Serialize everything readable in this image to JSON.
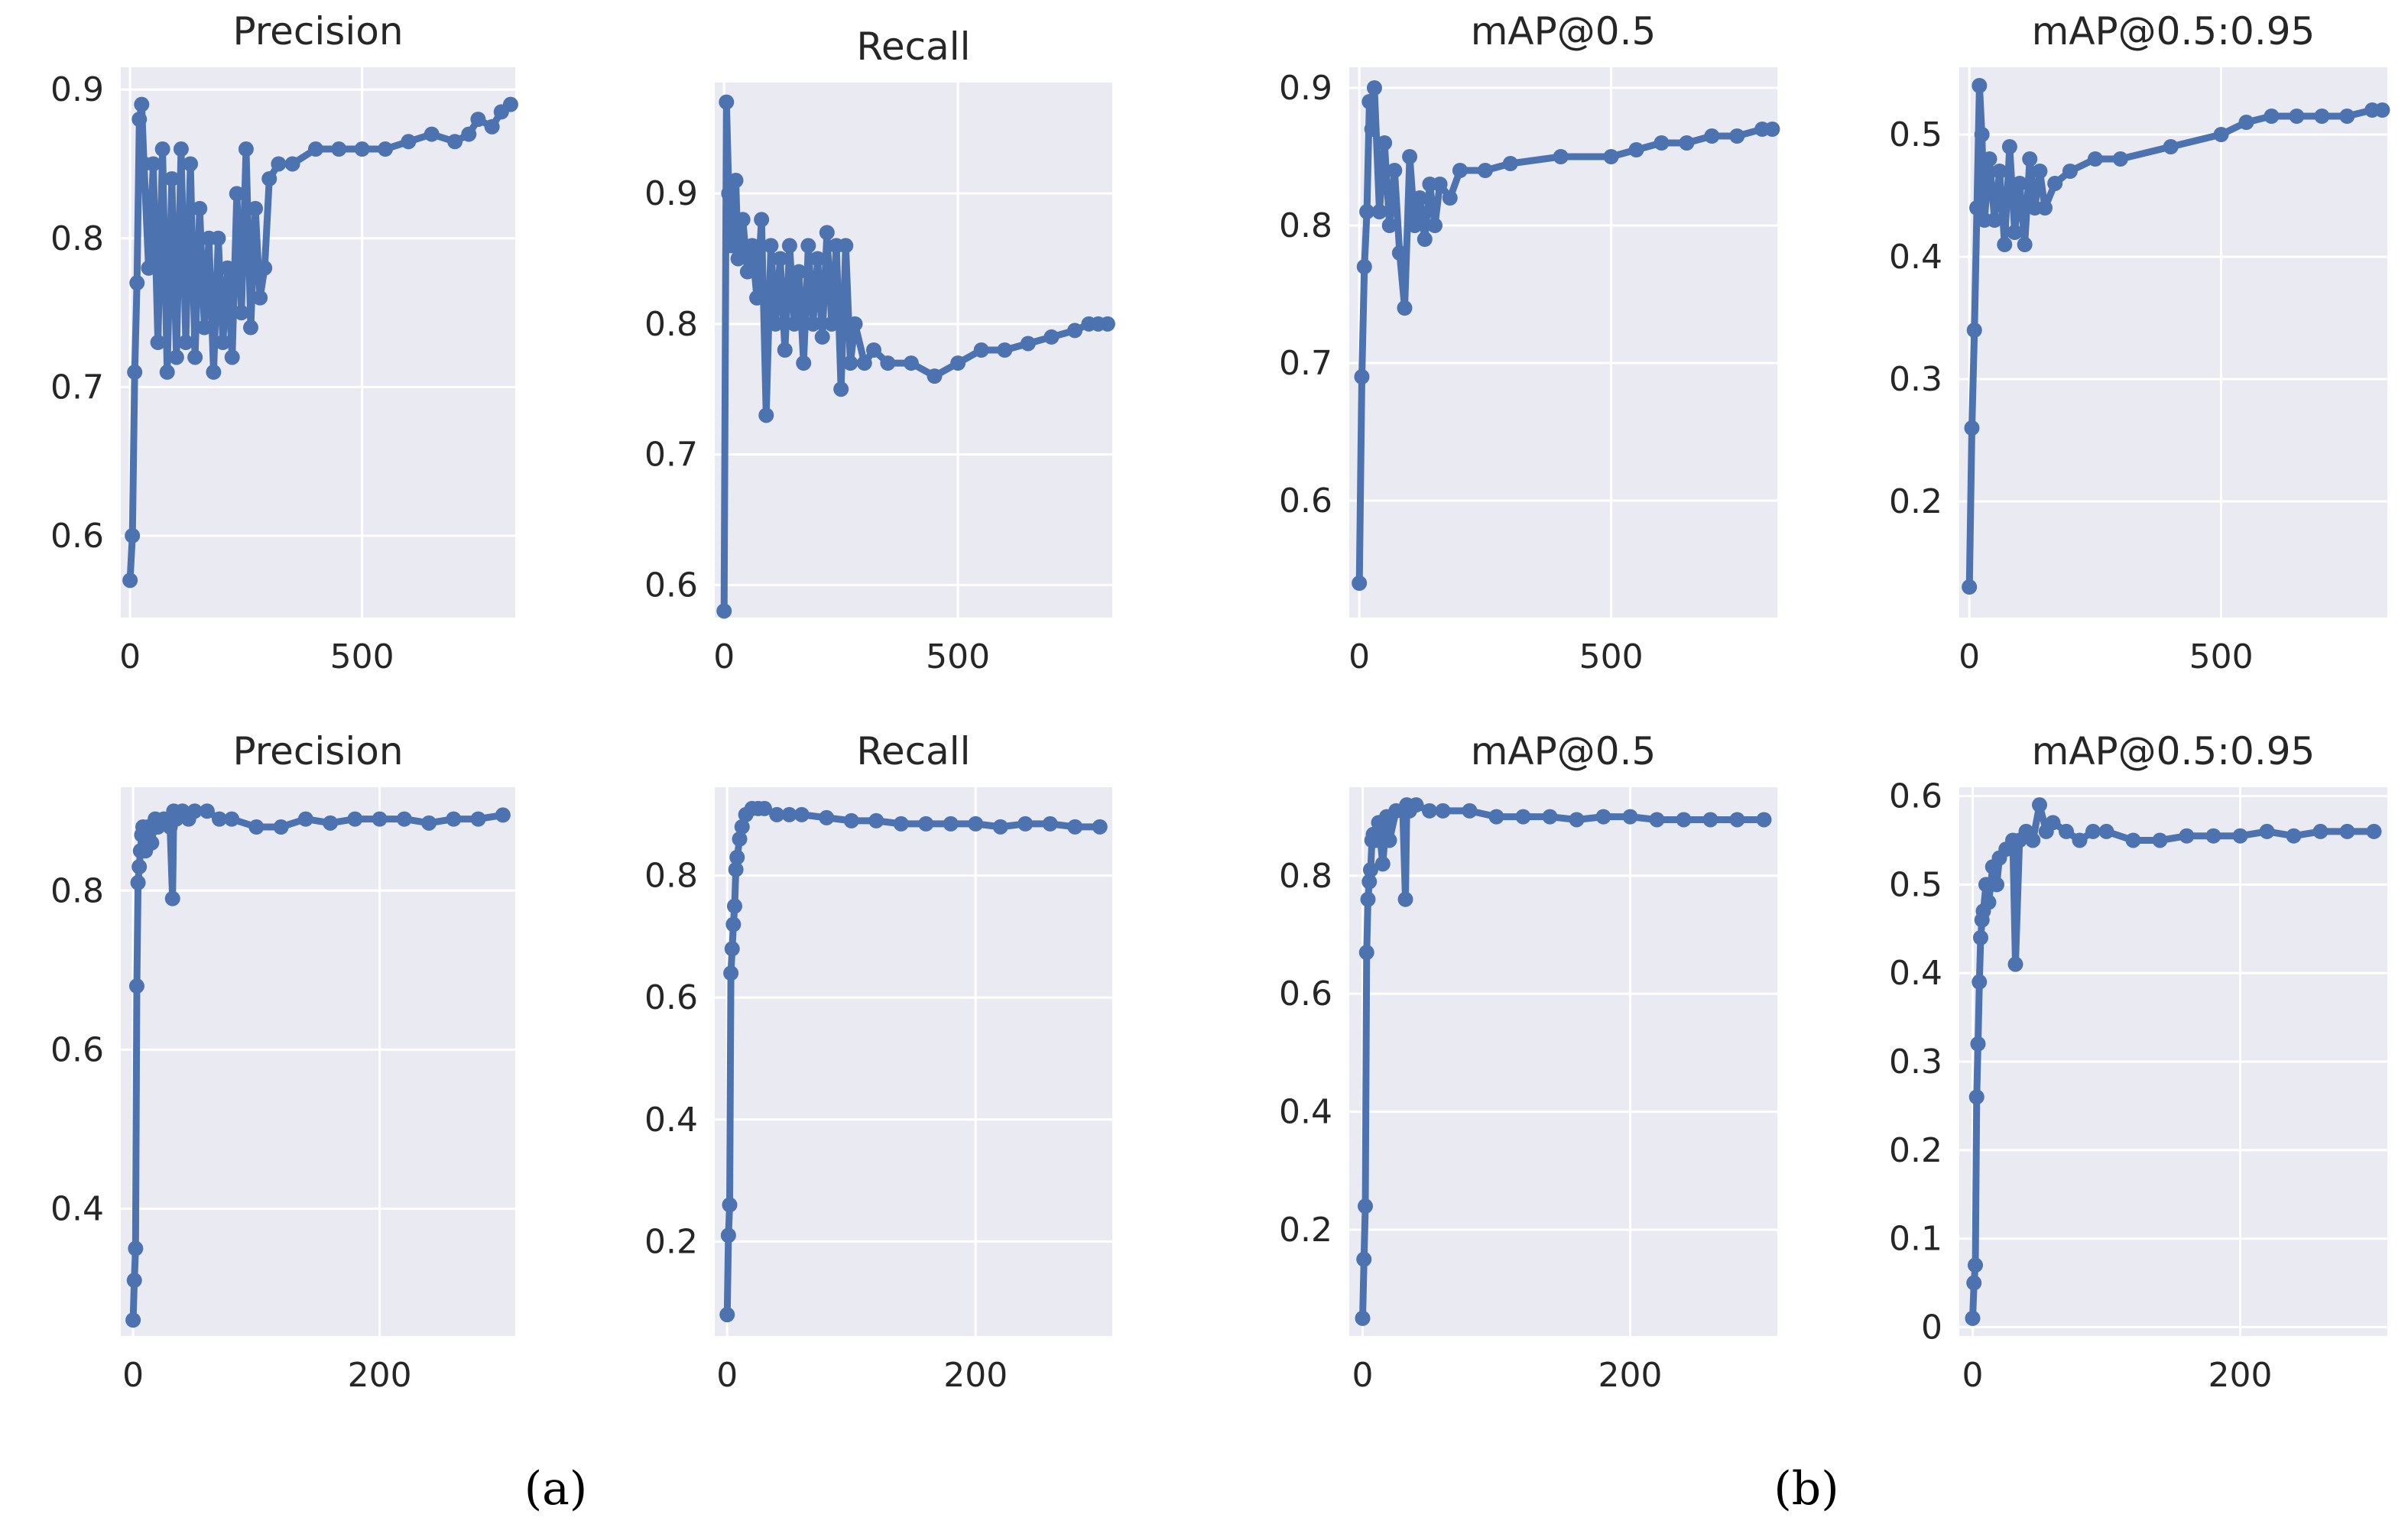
{
  "colors": {
    "panel_bg": "#EAEAF2",
    "grid": "#FFFFFF",
    "series": "#4C72B0",
    "text": "#262626"
  },
  "figure_labels": {
    "a": "(a)",
    "b": "(b)"
  },
  "chart_data": [
    {
      "type": "line",
      "group": "a",
      "title": "Precision",
      "xlim": [
        -20,
        830
      ],
      "ylim": [
        0.545,
        0.915
      ],
      "xticks": [
        0,
        500
      ],
      "yticks": [
        0.6,
        0.7,
        0.8,
        0.9
      ],
      "series": [
        {
          "name": "Precision",
          "x": [
            0,
            5,
            10,
            15,
            20,
            25,
            30,
            40,
            50,
            60,
            70,
            80,
            90,
            100,
            110,
            120,
            130,
            140,
            150,
            160,
            170,
            180,
            190,
            200,
            210,
            220,
            230,
            240,
            250,
            260,
            270,
            280,
            290,
            300,
            320,
            350,
            400,
            450,
            500,
            550,
            600,
            650,
            700,
            730,
            750,
            780,
            800,
            820
          ],
          "y": [
            0.57,
            0.6,
            0.71,
            0.77,
            0.88,
            0.89,
            0.85,
            0.78,
            0.85,
            0.73,
            0.86,
            0.71,
            0.84,
            0.72,
            0.86,
            0.73,
            0.85,
            0.72,
            0.82,
            0.74,
            0.8,
            0.71,
            0.8,
            0.73,
            0.78,
            0.72,
            0.83,
            0.75,
            0.86,
            0.74,
            0.82,
            0.76,
            0.78,
            0.84,
            0.85,
            0.85,
            0.86,
            0.86,
            0.86,
            0.86,
            0.865,
            0.87,
            0.865,
            0.87,
            0.88,
            0.875,
            0.885,
            0.89
          ]
        }
      ]
    },
    {
      "type": "line",
      "group": "a",
      "title": "Recall",
      "xlim": [
        -20,
        830
      ],
      "ylim": [
        0.575,
        0.985
      ],
      "xticks": [
        0,
        500
      ],
      "yticks": [
        0.6,
        0.7,
        0.8,
        0.9
      ],
      "series": [
        {
          "name": "Recall",
          "x": [
            0,
            5,
            10,
            15,
            20,
            25,
            30,
            40,
            50,
            60,
            70,
            80,
            90,
            100,
            110,
            120,
            130,
            140,
            150,
            160,
            170,
            180,
            190,
            200,
            210,
            220,
            230,
            240,
            250,
            260,
            270,
            280,
            300,
            320,
            350,
            400,
            450,
            500,
            550,
            600,
            650,
            700,
            750,
            780,
            800,
            820
          ],
          "y": [
            0.58,
            0.97,
            0.9,
            0.86,
            0.88,
            0.91,
            0.85,
            0.88,
            0.84,
            0.86,
            0.82,
            0.88,
            0.73,
            0.86,
            0.8,
            0.85,
            0.78,
            0.86,
            0.8,
            0.84,
            0.77,
            0.86,
            0.8,
            0.85,
            0.79,
            0.87,
            0.8,
            0.86,
            0.75,
            0.86,
            0.77,
            0.8,
            0.77,
            0.78,
            0.77,
            0.77,
            0.76,
            0.77,
            0.78,
            0.78,
            0.785,
            0.79,
            0.795,
            0.8,
            0.8,
            0.8
          ]
        }
      ]
    },
    {
      "type": "line",
      "group": "a",
      "title": "mAP@0.5",
      "xlim": [
        -20,
        830
      ],
      "ylim": [
        0.515,
        0.915
      ],
      "xticks": [
        0,
        500
      ],
      "yticks": [
        0.6,
        0.7,
        0.8,
        0.9
      ],
      "series": [
        {
          "name": "mAP@0.5",
          "x": [
            0,
            5,
            10,
            15,
            20,
            25,
            30,
            40,
            50,
            60,
            70,
            80,
            90,
            100,
            110,
            120,
            130,
            140,
            150,
            160,
            180,
            200,
            250,
            300,
            400,
            500,
            550,
            600,
            650,
            700,
            750,
            800,
            820
          ],
          "y": [
            0.54,
            0.69,
            0.77,
            0.81,
            0.89,
            0.87,
            0.9,
            0.81,
            0.86,
            0.8,
            0.84,
            0.78,
            0.74,
            0.85,
            0.8,
            0.82,
            0.79,
            0.83,
            0.8,
            0.83,
            0.82,
            0.84,
            0.84,
            0.845,
            0.85,
            0.85,
            0.855,
            0.86,
            0.86,
            0.865,
            0.865,
            0.87,
            0.87
          ]
        }
      ]
    },
    {
      "type": "line",
      "group": "a",
      "title": "mAP@0.5:0.95",
      "xlim": [
        -20,
        830
      ],
      "ylim": [
        0.105,
        0.555
      ],
      "xticks": [
        0,
        500
      ],
      "yticks": [
        0.2,
        0.3,
        0.4,
        0.5
      ],
      "series": [
        {
          "name": "mAP@0.5:0.95",
          "x": [
            0,
            5,
            10,
            15,
            20,
            25,
            30,
            40,
            50,
            60,
            70,
            80,
            90,
            100,
            110,
            120,
            130,
            140,
            150,
            170,
            200,
            250,
            300,
            400,
            500,
            550,
            600,
            650,
            700,
            750,
            800,
            820
          ],
          "y": [
            0.13,
            0.26,
            0.34,
            0.44,
            0.54,
            0.5,
            0.43,
            0.48,
            0.43,
            0.47,
            0.41,
            0.49,
            0.42,
            0.46,
            0.41,
            0.48,
            0.44,
            0.47,
            0.44,
            0.46,
            0.47,
            0.48,
            0.48,
            0.49,
            0.5,
            0.51,
            0.515,
            0.515,
            0.515,
            0.515,
            0.52,
            0.52
          ]
        }
      ]
    },
    {
      "type": "line",
      "group": "b",
      "title": "Precision",
      "xlim": [
        -10,
        310
      ],
      "ylim": [
        0.24,
        0.93
      ],
      "xticks": [
        0,
        200
      ],
      "yticks": [
        0.4,
        0.6,
        0.8
      ],
      "series": [
        {
          "name": "Precision",
          "x": [
            0,
            1,
            2,
            3,
            4,
            5,
            6,
            7,
            8,
            10,
            12,
            15,
            18,
            20,
            25,
            30,
            32,
            33,
            35,
            40,
            45,
            50,
            60,
            70,
            80,
            100,
            120,
            140,
            160,
            180,
            200,
            220,
            240,
            260,
            280,
            300
          ],
          "y": [
            0.26,
            0.31,
            0.35,
            0.68,
            0.81,
            0.83,
            0.85,
            0.87,
            0.88,
            0.85,
            0.88,
            0.86,
            0.89,
            0.88,
            0.89,
            0.88,
            0.79,
            0.9,
            0.89,
            0.9,
            0.89,
            0.9,
            0.9,
            0.89,
            0.89,
            0.88,
            0.88,
            0.89,
            0.885,
            0.89,
            0.89,
            0.89,
            0.885,
            0.89,
            0.89,
            0.895
          ]
        }
      ]
    },
    {
      "type": "line",
      "group": "b",
      "title": "Recall",
      "xlim": [
        -10,
        310
      ],
      "ylim": [
        0.045,
        0.945
      ],
      "xticks": [
        0,
        200
      ],
      "yticks": [
        0.2,
        0.4,
        0.6,
        0.8
      ],
      "series": [
        {
          "name": "Recall",
          "x": [
            0,
            1,
            2,
            3,
            4,
            5,
            6,
            7,
            8,
            10,
            12,
            15,
            20,
            25,
            30,
            40,
            50,
            60,
            80,
            100,
            120,
            140,
            160,
            180,
            200,
            220,
            240,
            260,
            280,
            300
          ],
          "y": [
            0.08,
            0.21,
            0.26,
            0.64,
            0.68,
            0.72,
            0.75,
            0.81,
            0.83,
            0.86,
            0.88,
            0.9,
            0.91,
            0.91,
            0.91,
            0.9,
            0.9,
            0.9,
            0.895,
            0.89,
            0.89,
            0.885,
            0.885,
            0.885,
            0.885,
            0.88,
            0.885,
            0.885,
            0.88,
            0.88
          ]
        }
      ]
    },
    {
      "type": "line",
      "group": "b",
      "title": "mAP@0.5",
      "xlim": [
        -10,
        310
      ],
      "ylim": [
        0.02,
        0.95
      ],
      "xticks": [
        0,
        200
      ],
      "yticks": [
        0.2,
        0.4,
        0.6,
        0.8
      ],
      "series": [
        {
          "name": "mAP@0.5",
          "x": [
            0,
            1,
            2,
            3,
            4,
            5,
            6,
            7,
            8,
            10,
            12,
            15,
            18,
            20,
            25,
            30,
            32,
            33,
            35,
            40,
            50,
            60,
            80,
            100,
            120,
            140,
            160,
            180,
            200,
            220,
            240,
            260,
            280,
            300
          ],
          "y": [
            0.05,
            0.15,
            0.24,
            0.67,
            0.76,
            0.79,
            0.81,
            0.86,
            0.87,
            0.86,
            0.89,
            0.82,
            0.9,
            0.86,
            0.91,
            0.91,
            0.76,
            0.92,
            0.91,
            0.92,
            0.91,
            0.91,
            0.91,
            0.9,
            0.9,
            0.9,
            0.895,
            0.9,
            0.9,
            0.895,
            0.895,
            0.895,
            0.895,
            0.895
          ]
        }
      ]
    },
    {
      "type": "line",
      "group": "b",
      "title": "mAP@0.5:0.95",
      "xlim": [
        -10,
        310
      ],
      "ylim": [
        -0.01,
        0.61
      ],
      "xticks": [
        0,
        200
      ],
      "yticks": [
        0.0,
        0.1,
        0.2,
        0.3,
        0.4,
        0.5,
        0.6
      ],
      "series": [
        {
          "name": "mAP@0.5:0.95",
          "x": [
            0,
            1,
            2,
            3,
            4,
            5,
            6,
            7,
            8,
            10,
            12,
            15,
            18,
            20,
            25,
            30,
            32,
            35,
            40,
            45,
            50,
            55,
            60,
            70,
            80,
            90,
            100,
            120,
            140,
            160,
            180,
            200,
            220,
            240,
            260,
            280,
            300
          ],
          "y": [
            0.01,
            0.05,
            0.07,
            0.26,
            0.32,
            0.39,
            0.44,
            0.46,
            0.47,
            0.5,
            0.48,
            0.52,
            0.5,
            0.53,
            0.54,
            0.55,
            0.41,
            0.55,
            0.56,
            0.55,
            0.59,
            0.56,
            0.57,
            0.56,
            0.55,
            0.56,
            0.56,
            0.55,
            0.55,
            0.555,
            0.555,
            0.555,
            0.56,
            0.555,
            0.56,
            0.56,
            0.56
          ]
        }
      ]
    }
  ]
}
